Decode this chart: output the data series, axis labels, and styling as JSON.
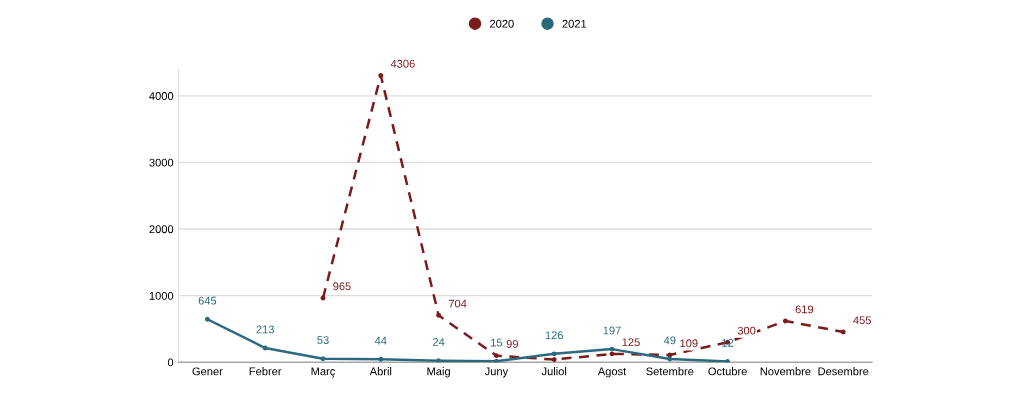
{
  "chart_data": {
    "type": "line",
    "categories": [
      "Gener",
      "Febrer",
      "Març",
      "Abril",
      "Maig",
      "Juny",
      "Juliol",
      "Agost",
      "Setembre",
      "Octubre",
      "Novembre",
      "Desembre"
    ],
    "series": [
      {
        "name": "2020",
        "color": "#7a1c1c",
        "line_style": "dashed",
        "values": [
          null,
          null,
          965,
          4306,
          704,
          99,
          40,
          125,
          109,
          300,
          619,
          455
        ],
        "value_labels": [
          null,
          null,
          "965",
          "4306",
          "704",
          "99",
          null,
          "125",
          "109",
          "300",
          "619",
          "455"
        ]
      },
      {
        "name": "2021",
        "color": "#2b6a7e",
        "line_style": "solid",
        "values": [
          645,
          213,
          53,
          44,
          24,
          15,
          126,
          197,
          49,
          12,
          null,
          null
        ],
        "value_labels": [
          "645",
          "213",
          "53",
          "44",
          "24",
          "15",
          "126",
          "197",
          "49",
          "12",
          null,
          null
        ]
      }
    ],
    "ylim": [
      0,
      4400
    ],
    "yticks": [
      0,
      1000,
      2000,
      3000,
      4000
    ],
    "grid": "y",
    "legend": "top",
    "marker": "circle"
  }
}
